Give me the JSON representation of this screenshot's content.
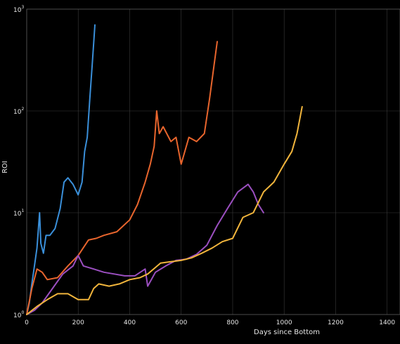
{
  "chart_data": {
    "type": "line",
    "title": "",
    "xlabel": "Days since Bottom",
    "ylabel": "ROI",
    "xlim": [
      0,
      1450
    ],
    "ylim": [
      1,
      1000
    ],
    "yscale": "log",
    "grid": true,
    "x_ticks": [
      0,
      200,
      400,
      600,
      800,
      1000,
      1200,
      1400
    ],
    "y_ticks": [
      {
        "value": 1,
        "base": "10",
        "exp": "0"
      },
      {
        "value": 10,
        "base": "10",
        "exp": "1"
      },
      {
        "value": 100,
        "base": "10",
        "exp": "2"
      },
      {
        "value": 1000,
        "base": "10",
        "exp": "3"
      }
    ],
    "series": [
      {
        "color": "#3a8fd9",
        "points": [
          [
            0,
            1.0
          ],
          [
            10,
            1.3
          ],
          [
            20,
            2.0
          ],
          [
            30,
            3.0
          ],
          [
            40,
            4.5
          ],
          [
            50,
            10
          ],
          [
            55,
            5
          ],
          [
            65,
            4
          ],
          [
            75,
            6
          ],
          [
            90,
            6
          ],
          [
            110,
            7
          ],
          [
            130,
            11
          ],
          [
            145,
            20
          ],
          [
            160,
            22
          ],
          [
            180,
            19
          ],
          [
            200,
            15
          ],
          [
            215,
            20
          ],
          [
            225,
            40
          ],
          [
            235,
            55
          ],
          [
            245,
            130
          ],
          [
            255,
            300
          ],
          [
            265,
            700
          ]
        ]
      },
      {
        "color": "#e8652d",
        "points": [
          [
            0,
            1.0
          ],
          [
            20,
            1.8
          ],
          [
            40,
            2.8
          ],
          [
            60,
            2.6
          ],
          [
            80,
            2.2
          ],
          [
            120,
            2.3
          ],
          [
            160,
            3.0
          ],
          [
            200,
            3.8
          ],
          [
            240,
            5.4
          ],
          [
            270,
            5.6
          ],
          [
            300,
            6.0
          ],
          [
            350,
            6.5
          ],
          [
            400,
            8.5
          ],
          [
            430,
            12
          ],
          [
            460,
            20
          ],
          [
            480,
            30
          ],
          [
            495,
            45
          ],
          [
            505,
            100
          ],
          [
            515,
            60
          ],
          [
            530,
            70
          ],
          [
            560,
            50
          ],
          [
            580,
            55
          ],
          [
            600,
            30
          ],
          [
            630,
            55
          ],
          [
            660,
            50
          ],
          [
            690,
            60
          ],
          [
            710,
            130
          ],
          [
            725,
            250
          ],
          [
            740,
            480
          ]
        ]
      },
      {
        "color": "#9b4fc0",
        "points": [
          [
            0,
            1.0
          ],
          [
            30,
            1.1
          ],
          [
            60,
            1.3
          ],
          [
            100,
            1.8
          ],
          [
            140,
            2.5
          ],
          [
            180,
            3.0
          ],
          [
            200,
            3.8
          ],
          [
            220,
            3.0
          ],
          [
            260,
            2.8
          ],
          [
            300,
            2.6
          ],
          [
            340,
            2.5
          ],
          [
            380,
            2.4
          ],
          [
            420,
            2.4
          ],
          [
            460,
            2.8
          ],
          [
            470,
            1.9
          ],
          [
            500,
            2.6
          ],
          [
            540,
            3.0
          ],
          [
            580,
            3.4
          ],
          [
            620,
            3.5
          ],
          [
            660,
            3.9
          ],
          [
            700,
            4.8
          ],
          [
            740,
            7.5
          ],
          [
            780,
            11
          ],
          [
            820,
            16
          ],
          [
            860,
            19
          ],
          [
            880,
            16
          ],
          [
            900,
            12
          ],
          [
            920,
            10
          ]
        ]
      },
      {
        "color": "#f0b43c",
        "points": [
          [
            0,
            1.0
          ],
          [
            40,
            1.2
          ],
          [
            80,
            1.4
          ],
          [
            120,
            1.6
          ],
          [
            160,
            1.6
          ],
          [
            200,
            1.4
          ],
          [
            240,
            1.4
          ],
          [
            260,
            1.8
          ],
          [
            280,
            2.0
          ],
          [
            320,
            1.9
          ],
          [
            360,
            2.0
          ],
          [
            400,
            2.2
          ],
          [
            440,
            2.3
          ],
          [
            470,
            2.5
          ],
          [
            500,
            2.9
          ],
          [
            520,
            3.2
          ],
          [
            560,
            3.3
          ],
          [
            600,
            3.4
          ],
          [
            640,
            3.6
          ],
          [
            680,
            4.0
          ],
          [
            720,
            4.5
          ],
          [
            760,
            5.2
          ],
          [
            800,
            5.6
          ],
          [
            840,
            9
          ],
          [
            880,
            10
          ],
          [
            920,
            16
          ],
          [
            960,
            20
          ],
          [
            1000,
            30
          ],
          [
            1030,
            40
          ],
          [
            1050,
            60
          ],
          [
            1070,
            110
          ]
        ]
      }
    ]
  }
}
